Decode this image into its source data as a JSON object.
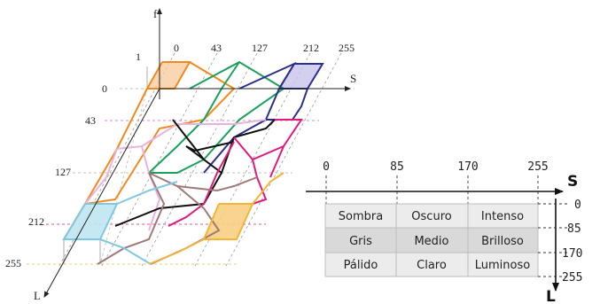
{
  "left_diagram": {
    "axis_f_label": "f",
    "axis_s_label": "S",
    "axis_l_label": "L",
    "f_tick": "1",
    "s_ticks": [
      "0",
      "43",
      "127",
      "212",
      "255"
    ],
    "l_ticks": [
      "0",
      "43",
      "127",
      "212",
      "255"
    ],
    "colors": {
      "orange": "#f08a1c",
      "green": "#1aa05a",
      "navy": "#2b2f8f",
      "pink": "#e8b4dc",
      "black": "#111111",
      "magenta": "#e0197a",
      "brown": "#a07878",
      "cyan": "#7ec8e3",
      "yellow": "#f2b53a"
    }
  },
  "right_table": {
    "s_axis_label": "S",
    "l_axis_label": "L",
    "s_ticks": [
      "0",
      "85",
      "170",
      "255"
    ],
    "l_ticks": [
      "0",
      "85",
      "170",
      "255"
    ],
    "rows": [
      [
        "Sombra",
        "Oscuro",
        "Intenso"
      ],
      [
        "Gris",
        "Medio",
        "Brilloso"
      ],
      [
        "Pálido",
        "Claro",
        "Luminoso"
      ]
    ]
  }
}
